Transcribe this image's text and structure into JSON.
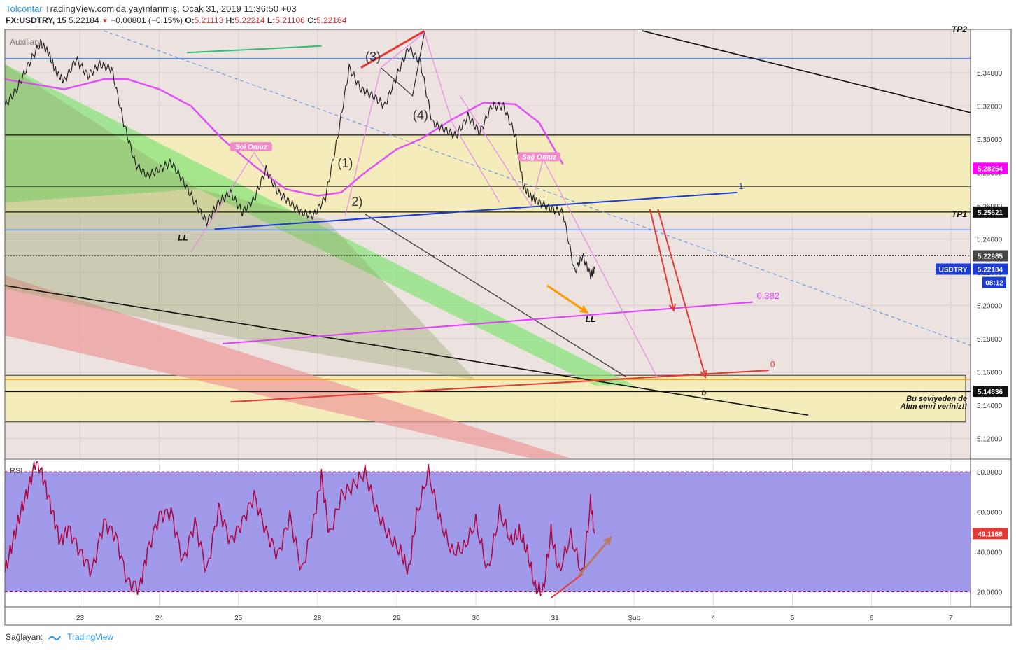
{
  "header": {
    "author": "Tolcontar",
    "published_text": "TradingView.com'da yayınlanmış, Ocak 31, 2019 11:36:50 +03",
    "symbol": "FX:USDTRY, 15",
    "last": "5.22184",
    "change": "−0.00801 (−0.15%)",
    "O_label": "O:",
    "O": "5.21113",
    "H_label": "H:",
    "H": "5.22214",
    "L_label": "L:",
    "L": "5.21106",
    "C_label": "C:",
    "C": "5.22184"
  },
  "colors": {
    "blue_line": "#5b8def",
    "ma_pink": "#e040fb",
    "up_arrow_red": "#e53935",
    "orange_arrow": "#ff9800",
    "rsi_band": "#9c94e8",
    "rsi_line": "#b0003a",
    "resistance_zone": "#f6eeb4",
    "green_channel": "#8be37e",
    "red_channel": "#ee9e9e"
  },
  "chart_data": [
    {
      "type": "line",
      "title": "USDTRY",
      "subtitle": "Auxiliary",
      "y_axis": {
        "ylim": [
          5.108,
          5.366
        ],
        "ticks": [
          5.12,
          5.14,
          5.16,
          5.18,
          5.2,
          5.22,
          5.24,
          5.26,
          5.28,
          5.3,
          5.32,
          5.34
        ],
        "tick_labels": [
          "5.12000",
          "5.14000",
          "5.16000",
          "5.18000",
          "5.20000",
          "5.22000",
          "5.24000",
          "5.26000",
          "5.28000",
          "5.30000",
          "5.32000",
          "5.34000"
        ]
      },
      "x_axis": {
        "categories": [
          "23",
          "24",
          "25",
          "28",
          "29",
          "30",
          "31",
          "Şub",
          "4",
          "5",
          "6",
          "7"
        ],
        "positions": [
          0.5,
          1.5,
          2.5,
          3.5,
          4.5,
          5.5,
          6.5,
          7.5,
          8.5,
          9.5,
          10.5,
          11.5
        ],
        "xlim": [
          -0.45,
          11.75
        ]
      },
      "price_series_approx": {
        "x": [
          -0.45,
          -0.3,
          -0.15,
          0.0,
          0.1,
          0.2,
          0.3,
          0.45,
          0.6,
          0.75,
          0.9,
          1.05,
          1.2,
          1.35,
          1.5,
          1.65,
          1.8,
          1.95,
          2.1,
          2.25,
          2.4,
          2.55,
          2.7,
          2.85,
          3.0,
          3.15,
          3.3,
          3.45,
          3.6,
          3.75,
          3.9,
          4.05,
          4.2,
          4.35,
          4.5,
          4.65,
          4.8,
          4.95,
          5.1,
          5.25,
          5.4,
          5.55,
          5.7,
          5.85,
          6.0,
          6.1,
          6.2,
          6.3,
          6.45,
          6.6,
          6.75,
          6.85,
          6.95,
          7.0
        ],
        "y": [
          5.32,
          5.33,
          5.345,
          5.358,
          5.352,
          5.34,
          5.335,
          5.348,
          5.338,
          5.345,
          5.342,
          5.31,
          5.285,
          5.278,
          5.282,
          5.286,
          5.275,
          5.262,
          5.25,
          5.262,
          5.268,
          5.256,
          5.264,
          5.282,
          5.268,
          5.262,
          5.256,
          5.254,
          5.265,
          5.3,
          5.343,
          5.33,
          5.326,
          5.32,
          5.338,
          5.355,
          5.346,
          5.31,
          5.306,
          5.302,
          5.314,
          5.304,
          5.32,
          5.32,
          5.302,
          5.272,
          5.265,
          5.262,
          5.258,
          5.256,
          5.22,
          5.23,
          5.218,
          5.222
        ]
      },
      "horizontal_levels": [
        {
          "value": 5.3485,
          "name": ""
        },
        {
          "value": 5.3025,
          "name": ""
        },
        {
          "value": 5.2715,
          "name": ""
        },
        {
          "value": 5.25621,
          "name": "TP1",
          "label": "5.25621"
        },
        {
          "value": 5.2455,
          "name": ""
        },
        {
          "value": 5.22985,
          "name": "",
          "label": "5.22985"
        },
        {
          "value": 5.1555,
          "name": ""
        },
        {
          "value": 5.14836,
          "name": "",
          "label": "5.14836"
        }
      ],
      "price_labels": {
        "magenta": "5.28254",
        "tp1": "5.25621",
        "dotted": "5.22985",
        "symbol": "USDTRY",
        "last": "5.22184",
        "countdown": "08:12",
        "support": "5.14836"
      },
      "annotations": {
        "sol_omuz": "Sol Omuz",
        "sag_omuz": "Sağ Omuz",
        "wave1": "(1)",
        "wave2": "2)",
        "wave3": "(3)",
        "wave4": "(4)",
        "ll1": "LL",
        "ll2": "LL",
        "auxiliary": "Auxiliary",
        "tp1": "TP1",
        "fib_1": "1",
        "fib_0382": "0.382",
        "fib_0": "0",
        "point_d": "D",
        "note_line1": "Bu seviyeden de",
        "note_line2": "Alım emri veriniz!!",
        "tp_top": "TP2"
      },
      "grid": true
    },
    {
      "type": "line",
      "title": "RSI",
      "ylim": [
        12.5,
        86
      ],
      "y_ticks": [
        20,
        40,
        60,
        80
      ],
      "tick_labels": [
        "20.0000",
        "40.0000",
        "60.0000",
        "80.0000"
      ],
      "band": [
        20,
        80
      ],
      "last_value": "49.1168",
      "series_approx": {
        "x": [
          -0.45,
          -0.35,
          -0.25,
          -0.15,
          -0.05,
          0.05,
          0.15,
          0.25,
          0.35,
          0.5,
          0.65,
          0.8,
          0.95,
          1.1,
          1.25,
          1.35,
          1.5,
          1.65,
          1.8,
          1.95,
          2.1,
          2.25,
          2.4,
          2.55,
          2.7,
          2.85,
          3.0,
          3.15,
          3.3,
          3.45,
          3.55,
          3.65,
          3.8,
          3.95,
          4.1,
          4.25,
          4.4,
          4.55,
          4.65,
          4.75,
          4.9,
          5.05,
          5.2,
          5.35,
          5.5,
          5.65,
          5.8,
          5.95,
          6.05,
          6.15,
          6.25,
          6.35,
          6.45,
          6.55,
          6.7,
          6.85,
          6.95,
          7.0
        ],
        "y": [
          30,
          45,
          60,
          72,
          87,
          75,
          60,
          45,
          52,
          40,
          30,
          55,
          48,
          25,
          22,
          40,
          58,
          60,
          35,
          55,
          30,
          62,
          45,
          55,
          68,
          50,
          38,
          58,
          30,
          55,
          78,
          48,
          68,
          73,
          80,
          60,
          48,
          40,
          30,
          58,
          80,
          55,
          40,
          42,
          55,
          30,
          60,
          45,
          50,
          40,
          22,
          20,
          50,
          30,
          48,
          28,
          65,
          49.1168
        ]
      },
      "annotation_arrow": "up"
    }
  ],
  "footer": {
    "label": "Sağlayan:",
    "brand": "TradingView"
  }
}
